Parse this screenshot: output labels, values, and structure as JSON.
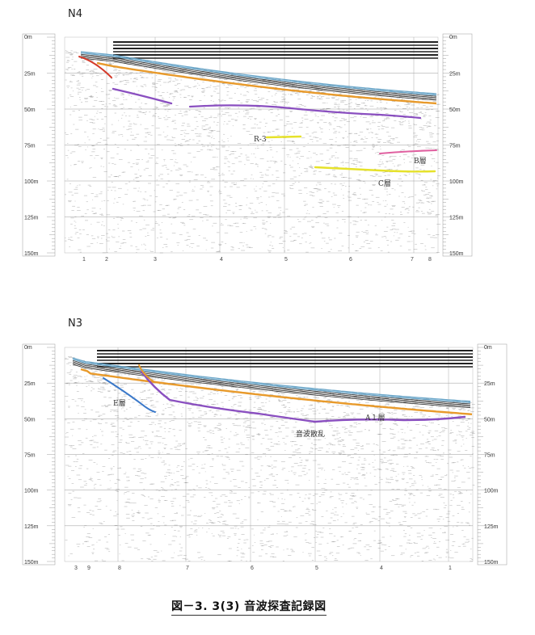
{
  "figure_caption": "図－3. 3(3) 音波探査記録図",
  "panels": [
    {
      "id": "N4",
      "label": "N4",
      "depth_scale": [
        "0m",
        "25m",
        "50m",
        "75m",
        "100m",
        "125m",
        "150m"
      ],
      "annotations": [
        "R-3",
        "B層",
        "C層"
      ],
      "bottom_markers": [
        "1",
        "2",
        "3",
        "4",
        "5",
        "6",
        "7",
        "8"
      ]
    },
    {
      "id": "N3",
      "label": "N3",
      "depth_scale": [
        "0m",
        "25m",
        "50m",
        "75m",
        "100m",
        "125m",
        "150m"
      ],
      "annotations": [
        "E層",
        "A１層",
        "音波散乱"
      ],
      "bottom_markers": [
        "3",
        "9",
        "8",
        "7",
        "6",
        "5",
        "4",
        "1"
      ]
    }
  ],
  "colors": {
    "surface": "#6aa6c9",
    "orange_reflector": "#e89a2b",
    "purple_reflector": "#8a4fc0",
    "yellow_reflector": "#e6e22a",
    "pink_reflector": "#e060a0",
    "red_reflector": "#d43a2a",
    "blue_reflector": "#3a78c9"
  }
}
